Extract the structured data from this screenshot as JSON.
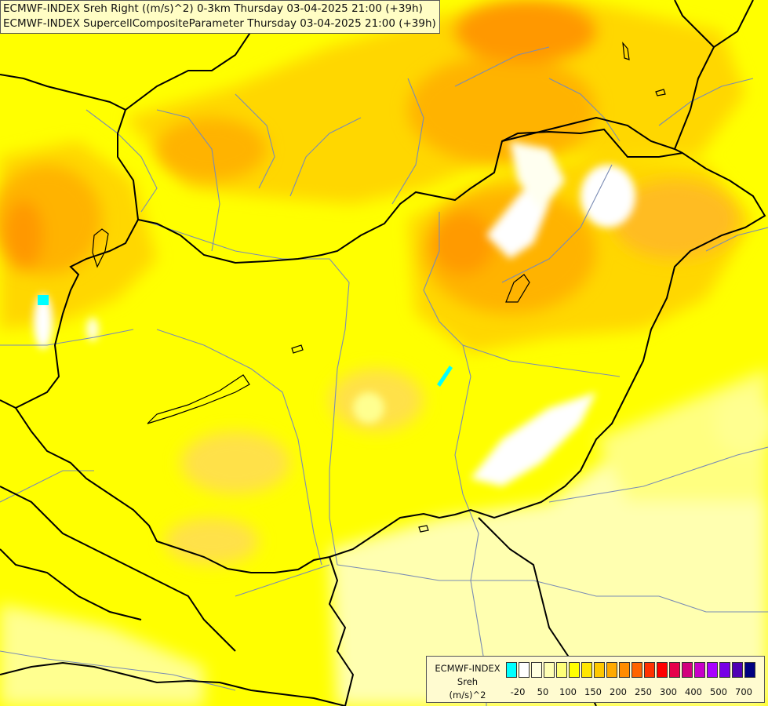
{
  "titles": [
    "ECMWF-INDEX Sreh Right ((m/s)^2) 0-3km Thursday 03-04-2025 21:00 (+39h)",
    "ECMWF-INDEX SupercellCompositeParameter Thursday 03-04-2025 21:00 (+39h)"
  ],
  "legend": {
    "source": "ECMWF-INDEX",
    "variable": "Sreh",
    "unit": "(m/s)^2",
    "tick_labels": [
      "-20",
      "50",
      "100",
      "150",
      "200",
      "250",
      "300",
      "400",
      "500",
      "700"
    ],
    "swatch_colors": [
      "#00ffff",
      "#ffffff",
      "#ffffe0",
      "#ffffb4",
      "#ffff78",
      "#ffff00",
      "#ffe600",
      "#ffc800",
      "#ffaa00",
      "#ff8c00",
      "#ff6400",
      "#ff3200",
      "#ff0000",
      "#e6004b",
      "#d2007d",
      "#c800c8",
      "#aa00ff",
      "#7800e6",
      "#5000b4",
      "#000080"
    ]
  },
  "map": {
    "background_color": "#ffff00",
    "border_color": "#000000",
    "river_color": "#7a8cb4"
  }
}
